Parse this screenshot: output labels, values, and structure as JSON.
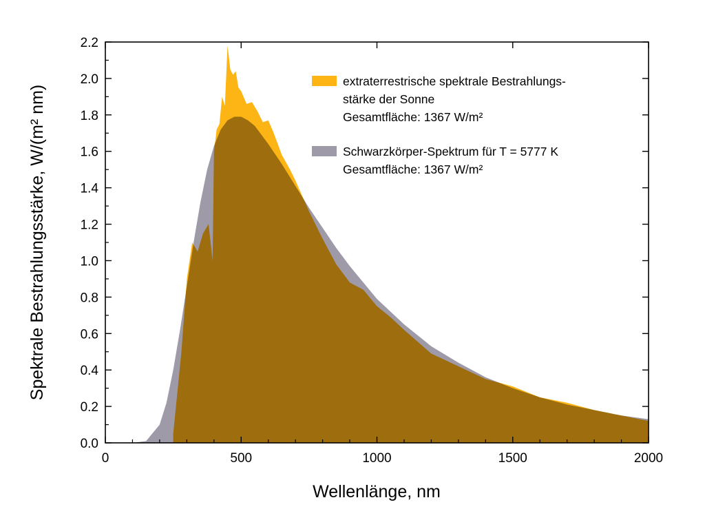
{
  "chart_data": {
    "type": "area",
    "xlabel": "Wellenlänge, nm",
    "ylabel": "Spektrale Bestrahlungsstärke, W/(m² nm)",
    "xlim": [
      0,
      2000
    ],
    "ylim": [
      0,
      2.2
    ],
    "x_ticks": [
      0,
      500,
      1000,
      1500,
      2000
    ],
    "x_tick_labels": [
      "0",
      "500",
      "1000",
      "1500",
      "2000"
    ],
    "y_ticks": [
      0,
      0.2,
      0.4,
      0.6,
      0.8,
      1.0,
      1.2,
      1.4,
      1.6,
      1.8,
      2.0,
      2.2
    ],
    "y_tick_labels": [
      "0.0",
      "0.2",
      "0.4",
      "0.6",
      "0.8",
      "1.0",
      "1.2",
      "1.4",
      "1.6",
      "1.8",
      "2.0",
      "2.2"
    ],
    "grid": false,
    "legend_position": "top-right",
    "series": [
      {
        "name": "extraterrestrische spektrale Bestrahlungs-stärke der Sonne",
        "legend_lines": [
          "extraterrestrische spektrale Bestrahlungs-",
          "stärke der Sonne",
          "Gesamtfläche: 1367 W/m²"
        ],
        "color": "#FDB515",
        "x": [
          250,
          260,
          280,
          300,
          320,
          340,
          360,
          380,
          395,
          400,
          410,
          420,
          430,
          440,
          450,
          460,
          470,
          480,
          490,
          500,
          520,
          540,
          560,
          580,
          600,
          620,
          650,
          680,
          700,
          750,
          800,
          850,
          900,
          950,
          1000,
          1050,
          1100,
          1200,
          1300,
          1400,
          1500,
          1600,
          1700,
          1800,
          1900,
          2000
        ],
        "y": [
          0.05,
          0.2,
          0.5,
          0.9,
          1.1,
          1.05,
          1.15,
          1.2,
          1.0,
          1.6,
          1.72,
          1.75,
          1.9,
          1.85,
          2.18,
          2.05,
          2.02,
          2.04,
          1.95,
          1.93,
          1.86,
          1.87,
          1.82,
          1.76,
          1.77,
          1.7,
          1.58,
          1.5,
          1.44,
          1.27,
          1.12,
          0.98,
          0.88,
          0.84,
          0.75,
          0.69,
          0.62,
          0.49,
          0.42,
          0.35,
          0.31,
          0.25,
          0.22,
          0.18,
          0.15,
          0.12
        ]
      },
      {
        "name": "Schwarzkörper-Spektrum für T = 5777 K",
        "legend_lines": [
          "Schwarzkörper-Spektrum für T = 5777 K",
          "Gesamtfläche: 1367 W/m²"
        ],
        "color": "#9E9AA8",
        "x": [
          100,
          150,
          200,
          225,
          250,
          275,
          300,
          325,
          350,
          375,
          400,
          425,
          450,
          475,
          500,
          525,
          550,
          600,
          650,
          700,
          750,
          800,
          850,
          900,
          950,
          1000,
          1100,
          1200,
          1300,
          1400,
          1500,
          1600,
          1700,
          1800,
          1900,
          2000
        ],
        "y": [
          0.0,
          0.01,
          0.1,
          0.22,
          0.4,
          0.62,
          0.86,
          1.1,
          1.32,
          1.5,
          1.63,
          1.72,
          1.77,
          1.79,
          1.79,
          1.77,
          1.74,
          1.64,
          1.53,
          1.41,
          1.29,
          1.18,
          1.07,
          0.97,
          0.88,
          0.79,
          0.65,
          0.53,
          0.44,
          0.36,
          0.3,
          0.25,
          0.21,
          0.18,
          0.15,
          0.13
        ]
      }
    ]
  }
}
